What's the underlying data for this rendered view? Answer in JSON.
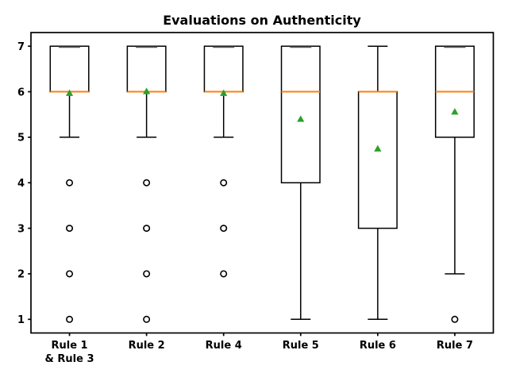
{
  "figure": {
    "background": "#ffffff"
  },
  "chart_data": {
    "type": "boxplot",
    "title": "Evaluations on Authenticity",
    "xlabel": "",
    "ylabel": "",
    "categories": [
      "Rule 1\n& Rule 3",
      "Rule 2",
      "Rule 4",
      "Rule 5",
      "Rule 6",
      "Rule 7"
    ],
    "yticks": [
      1,
      2,
      3,
      4,
      5,
      6,
      7
    ],
    "xlim": [
      0.5,
      6.5
    ],
    "ylim": [
      0.7,
      7.3
    ],
    "grid": false,
    "legend": "none",
    "colors": {
      "box_line": "#000000",
      "median": "#ff7f0e",
      "mean": "#2ca02c",
      "whisker": "#000000",
      "outlier_stroke": "#000000",
      "top_cap_overlap": "#595959"
    },
    "series": [
      {
        "category": "Rule 1\n& Rule 3",
        "whisker_low": 5,
        "q1": 6,
        "median": 6,
        "q3": 7,
        "whisker_high": 7,
        "mean": 5.97,
        "outliers": [
          4,
          3,
          2,
          1
        ]
      },
      {
        "category": "Rule 2",
        "whisker_low": 5,
        "q1": 6,
        "median": 6,
        "q3": 7,
        "whisker_high": 7,
        "mean": 6.01,
        "outliers": [
          4,
          3,
          2,
          1
        ]
      },
      {
        "category": "Rule 4",
        "whisker_low": 5,
        "q1": 6,
        "median": 6,
        "q3": 7,
        "whisker_high": 7,
        "mean": 5.97,
        "outliers": [
          4,
          3,
          2
        ]
      },
      {
        "category": "Rule 5",
        "whisker_low": 1,
        "q1": 4,
        "median": 6,
        "q3": 7,
        "whisker_high": 7,
        "mean": 5.4,
        "outliers": []
      },
      {
        "category": "Rule 6",
        "whisker_low": 1,
        "q1": 3,
        "median": 6,
        "q3": 6,
        "whisker_high": 7,
        "mean": 4.75,
        "outliers": []
      },
      {
        "category": "Rule 7",
        "whisker_low": 2,
        "q1": 5,
        "median": 6,
        "q3": 7,
        "whisker_high": 7,
        "mean": 5.56,
        "outliers": [
          1
        ]
      }
    ]
  }
}
